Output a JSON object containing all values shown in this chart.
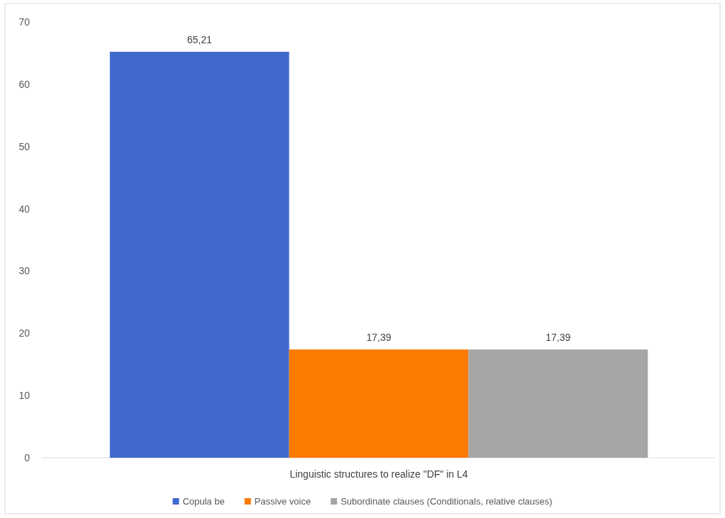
{
  "chart_data": {
    "type": "bar",
    "categories": [
      "Linguistic structures to realize \"DF\" in L4"
    ],
    "series": [
      {
        "name": "Copula be",
        "color": "#4169cd",
        "values": [
          65.21
        ],
        "value_labels": [
          "65,21"
        ]
      },
      {
        "name": "Passive voice",
        "color": "#fb7a00",
        "values": [
          17.39
        ],
        "value_labels": [
          "17,39"
        ]
      },
      {
        "name": "Subordinate clauses (Conditionals, relative clauses)",
        "color": "#a5a5a5",
        "values": [
          17.39
        ],
        "value_labels": [
          "17,39"
        ]
      }
    ],
    "ylim": [
      0,
      70
    ],
    "yticks": [
      0,
      10,
      20,
      30,
      40,
      50,
      60,
      70
    ],
    "grid": false,
    "legend": "bottom"
  }
}
